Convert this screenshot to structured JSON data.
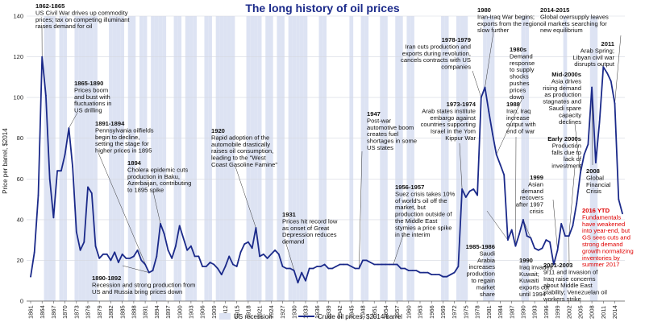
{
  "chart_data": {
    "type": "line",
    "title": "The long history of oil prices",
    "ylabel": "Price per barrel, $2014",
    "xlabel": "",
    "xlim": [
      1861,
      2016
    ],
    "ylim": [
      0,
      140
    ],
    "yticks": [
      0,
      20,
      40,
      60,
      80,
      100,
      120,
      140
    ],
    "xticks": [
      1861,
      1864,
      1867,
      1870,
      1873,
      1876,
      1879,
      1882,
      1885,
      1888,
      1891,
      1894,
      1897,
      1900,
      1903,
      1906,
      1909,
      1912,
      1915,
      1918,
      1921,
      1924,
      1927,
      1930,
      1933,
      1936,
      1939,
      1942,
      1945,
      1948,
      1951,
      1954,
      1957,
      1960,
      1963,
      1966,
      1969,
      1972,
      1975,
      1978,
      1981,
      1984,
      1987,
      1990,
      1993,
      1996,
      1999,
      2002,
      2005,
      2008,
      2011,
      2014
    ],
    "legend": [
      "US recession",
      "Crude oil prices, $2014/barrel"
    ],
    "recession_years": [
      1865,
      1866,
      1867,
      1869,
      1870,
      1873,
      1874,
      1875,
      1876,
      1877,
      1878,
      1882,
      1883,
      1884,
      1885,
      1887,
      1888,
      1890,
      1891,
      1893,
      1894,
      1895,
      1896,
      1899,
      1900,
      1902,
      1903,
      1904,
      1907,
      1908,
      1910,
      1911,
      1912,
      1913,
      1914,
      1918,
      1919,
      1920,
      1921,
      1923,
      1924,
      1926,
      1927,
      1929,
      1930,
      1931,
      1932,
      1933,
      1937,
      1938,
      1945,
      1948,
      1949,
      1953,
      1954,
      1957,
      1958,
      1960,
      1961,
      1969,
      1970,
      1973,
      1974,
      1975,
      1980,
      1981,
      1982,
      1990,
      1991,
      2001,
      2008,
      2009
    ],
    "series": [
      {
        "name": "Crude oil prices, $2014/barrel",
        "x": [
          1861,
          1862,
          1863,
          1864,
          1865,
          1866,
          1867,
          1868,
          1869,
          1870,
          1871,
          1872,
          1873,
          1874,
          1875,
          1876,
          1877,
          1878,
          1879,
          1880,
          1881,
          1882,
          1883,
          1884,
          1885,
          1886,
          1887,
          1888,
          1889,
          1890,
          1891,
          1892,
          1893,
          1894,
          1895,
          1896,
          1897,
          1898,
          1899,
          1900,
          1901,
          1902,
          1903,
          1904,
          1905,
          1906,
          1907,
          1908,
          1909,
          1910,
          1911,
          1912,
          1913,
          1914,
          1915,
          1916,
          1917,
          1918,
          1919,
          1920,
          1921,
          1922,
          1923,
          1924,
          1925,
          1926,
          1927,
          1928,
          1929,
          1930,
          1931,
          1932,
          1933,
          1934,
          1935,
          1936,
          1937,
          1938,
          1939,
          1940,
          1941,
          1942,
          1943,
          1944,
          1945,
          1946,
          1947,
          1948,
          1949,
          1950,
          1951,
          1952,
          1953,
          1954,
          1955,
          1956,
          1957,
          1958,
          1959,
          1960,
          1961,
          1962,
          1963,
          1964,
          1965,
          1966,
          1967,
          1968,
          1969,
          1970,
          1971,
          1972,
          1973,
          1974,
          1975,
          1976,
          1977,
          1978,
          1979,
          1980,
          1981,
          1982,
          1983,
          1984,
          1985,
          1986,
          1987,
          1988,
          1989,
          1990,
          1991,
          1992,
          1993,
          1994,
          1995,
          1996,
          1997,
          1998,
          1999,
          2000,
          2001,
          2002,
          2003,
          2004,
          2005,
          2006,
          2007,
          2008,
          2009,
          2010,
          2011,
          2012,
          2013,
          2014,
          2015,
          2016
        ],
        "values": [
          12,
          24,
          52,
          120,
          101,
          60,
          41,
          64,
          64,
          72,
          85,
          66,
          34,
          25,
          29,
          56,
          53,
          27,
          21,
          23,
          23,
          20,
          24,
          19,
          23,
          21,
          21,
          22,
          25,
          20,
          18,
          14,
          15,
          22,
          38,
          33,
          25,
          21,
          27,
          37,
          31,
          25,
          27,
          22,
          22,
          17,
          17,
          19,
          18,
          16,
          13,
          17,
          22,
          18,
          17,
          24,
          28,
          29,
          26,
          36,
          22,
          23,
          21,
          23,
          25,
          23,
          17,
          16,
          16,
          15,
          9,
          14,
          10,
          16,
          16,
          17,
          17,
          18,
          16,
          16,
          17,
          18,
          18,
          18,
          17,
          16,
          16,
          20,
          20,
          19,
          18,
          18,
          18,
          18,
          18,
          18,
          18,
          16,
          16,
          15,
          15,
          15,
          14,
          14,
          14,
          13,
          13,
          13,
          12,
          12,
          13,
          14,
          17,
          55,
          51,
          54,
          55,
          52,
          100,
          105,
          93,
          82,
          72,
          67,
          62,
          30,
          35,
          27,
          33,
          40,
          32,
          31,
          26,
          25,
          26,
          30,
          29,
          18,
          25,
          38,
          32,
          32,
          37,
          48,
          63,
          72,
          77,
          105,
          68,
          88,
          115,
          112,
          108,
          97,
          50,
          43
        ]
      }
    ]
  },
  "annotations": [
    {
      "id": "a1862",
      "head": "1862-1865",
      "lines": [
        "US Civil War drives up commodity",
        "prices; tax on competing illuminant",
        "raises demand for oil"
      ]
    },
    {
      "id": "a1865",
      "head": "1865-1890",
      "lines": [
        "Prices boom",
        "and bust with",
        "fluctuations in",
        "US drilling"
      ]
    },
    {
      "id": "a1891",
      "head": "1891-1894",
      "lines": [
        "Pennsylvania oilfields",
        "begin to decline,",
        "setting the stage for",
        "higher prices in 1895"
      ]
    },
    {
      "id": "a1894",
      "head": "1894",
      "lines": [
        "Cholera epidemic cuts",
        "production in Baku,",
        "Azerbaijan, contributing",
        "to 1895 spike"
      ]
    },
    {
      "id": "a1890",
      "head": "1890-1892",
      "lines": [
        "Recession and strong production from",
        "US and Russia bring prices down"
      ]
    },
    {
      "id": "a1920",
      "head": "1920",
      "lines": [
        "Rapid adoption of the",
        "automobile drastically",
        "raises oil consumption,",
        "leading to the \"West",
        "Coast Gasoline Famine\""
      ]
    },
    {
      "id": "a1931",
      "head": "1931",
      "lines": [
        "Prices hit record low",
        "as onset of Great",
        "Depression reduces",
        "demand"
      ]
    },
    {
      "id": "a1947",
      "head": "1947",
      "lines": [
        "Post-war",
        "automotive boom",
        "creates fuel",
        "shortages in some",
        "US states"
      ]
    },
    {
      "id": "a1956",
      "head": "1956-1957",
      "lines": [
        "Suez crisis takes 10%",
        "of world's oil off the",
        "market, but",
        "production outside of",
        "the Middle East",
        "stymies a price spike",
        "in the interim"
      ]
    },
    {
      "id": "a1973",
      "head": "1973-1974",
      "lines": [
        "Arab states institute",
        "embargo against",
        "countries supporting",
        "Israel in the Yom",
        "Kippur War"
      ]
    },
    {
      "id": "a1978",
      "head": "1978-1979",
      "lines": [
        "Iran cuts production and",
        "exports during revolution,",
        "cancels contracts with US",
        "companies"
      ]
    },
    {
      "id": "a1980",
      "head": "1980",
      "lines": [
        "Iran-Iraq War begins;",
        "exports from the region",
        "slow further"
      ]
    },
    {
      "id": "a1980s",
      "head": "1980s",
      "lines": [
        "Demand",
        "response",
        "to supply",
        "shocks",
        "pushes",
        "prices",
        "down"
      ]
    },
    {
      "id": "a1985",
      "head": "1985-1986",
      "lines": [
        "Saudi",
        "Arabia",
        "increases",
        "production",
        "to regain",
        "market",
        "share"
      ]
    },
    {
      "id": "a1988",
      "head": "1988",
      "lines": [
        "Iran, Iraq",
        "increase",
        "output with",
        "end of war"
      ]
    },
    {
      "id": "a1990",
      "head": "1990",
      "lines": [
        "Iraq invades",
        "Kuwait;",
        "Kuwaiti",
        "exports cut",
        "until 1994"
      ]
    },
    {
      "id": "a1999",
      "head": "1999",
      "lines": [
        "Asian",
        "demand",
        "recovers",
        "after 1997",
        "crisis"
      ]
    },
    {
      "id": "a2000s",
      "head": "Early 2000s",
      "lines": [
        "Production",
        "falls due to",
        "lack of",
        "investment"
      ]
    },
    {
      "id": "a2001",
      "head": "2001-2003",
      "lines": [
        "9/11 and invasion of",
        "Iraq raise concerns",
        "about Middle East",
        "stability; Venezuelan oil",
        "workers strike"
      ]
    },
    {
      "id": "aMid",
      "head": "Mid-2000s",
      "lines": [
        "Asia drives",
        "rising demand",
        "as production",
        "stagnates and",
        "Saudi spare",
        "capacity",
        "declines"
      ]
    },
    {
      "id": "a2008",
      "head": "2008",
      "lines": [
        "Global",
        "Financial",
        "Crisis"
      ]
    },
    {
      "id": "a2011",
      "head": "2011",
      "lines": [
        "Arab Spring;",
        "Libyan civil war",
        "disrupts output"
      ]
    },
    {
      "id": "a2014",
      "head": "2014-2015",
      "lines": [
        "Global oversupply leaves",
        "oil markets searching for",
        "new equilibrium"
      ]
    },
    {
      "id": "a2016",
      "head": "2016 YTD",
      "lines": [
        "Fundamentals",
        "have weakened",
        "into year-end, but",
        "GS sees cuts and",
        "strong demand",
        "growth normalizing",
        "inventories by",
        "summer 2017"
      ]
    }
  ]
}
